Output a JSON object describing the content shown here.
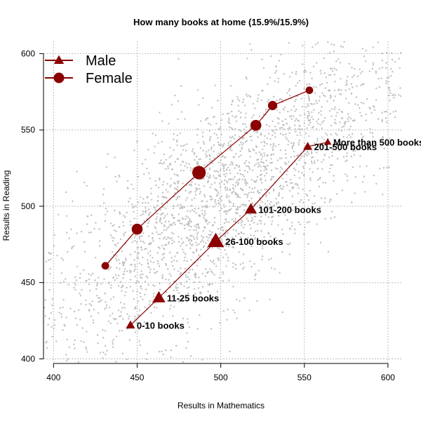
{
  "chart_data": {
    "type": "scatter",
    "title": "How many books at home (15.9%/15.9%)",
    "xlabel": "Results in Mathematics",
    "ylabel": "Results in Reading",
    "xlim": [
      394,
      608
    ],
    "ylim": [
      397,
      608
    ],
    "xticks": [
      400,
      450,
      500,
      550,
      600
    ],
    "yticks": [
      400,
      450,
      500,
      550,
      600
    ],
    "grid": true,
    "legend_position": "top-left",
    "background_scatter_color": "#aaaaaa",
    "series_color": "#8b0000",
    "series": [
      {
        "name": "Male",
        "marker": "triangle",
        "points": [
          {
            "x": 446,
            "y": 422,
            "size": 1.0,
            "label": "0-10 books"
          },
          {
            "x": 463,
            "y": 440,
            "size": 1.4,
            "label": "11-25 books"
          },
          {
            "x": 497,
            "y": 477,
            "size": 1.8,
            "label": "26-100 books"
          },
          {
            "x": 518,
            "y": 498,
            "size": 1.3,
            "label": "101-200 books"
          },
          {
            "x": 552,
            "y": 539,
            "size": 1.0,
            "label": "201-500 books"
          },
          {
            "x": 564,
            "y": 542,
            "size": 0.8,
            "label": "More than 500 books"
          }
        ]
      },
      {
        "name": "Female",
        "marker": "circle",
        "points": [
          {
            "x": 431,
            "y": 461,
            "size": 0.9
          },
          {
            "x": 450,
            "y": 485,
            "size": 1.3
          },
          {
            "x": 487,
            "y": 522,
            "size": 1.6
          },
          {
            "x": 521,
            "y": 553,
            "size": 1.3
          },
          {
            "x": 531,
            "y": 566,
            "size": 1.1
          },
          {
            "x": 553,
            "y": 576,
            "size": 0.9
          }
        ]
      }
    ]
  }
}
